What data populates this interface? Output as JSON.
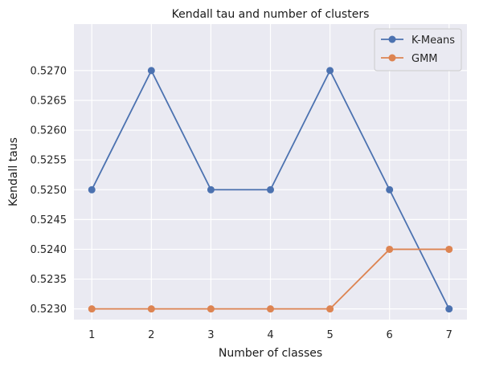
{
  "chart_data": {
    "type": "line",
    "title": "Kendall tau and number of clusters",
    "xlabel": "Number of classes",
    "ylabel": "Kendall taus",
    "x": [
      1,
      2,
      3,
      4,
      5,
      6,
      7
    ],
    "xticks": [
      "1",
      "2",
      "3",
      "4",
      "5",
      "6",
      "7"
    ],
    "xlim": [
      0.7,
      7.3
    ],
    "ylim": [
      0.52282,
      0.52778
    ],
    "yticks": [
      "0.5230",
      "0.5235",
      "0.5240",
      "0.5245",
      "0.5250",
      "0.5255",
      "0.5260",
      "0.5265",
      "0.5270"
    ],
    "grid": true,
    "legend_position": "top-right",
    "series": [
      {
        "name": "K-Means",
        "color": "#4c72b0",
        "values": [
          0.525,
          0.527,
          0.525,
          0.525,
          0.527,
          0.525,
          0.523
        ]
      },
      {
        "name": "GMM",
        "color": "#dd8452",
        "values": [
          0.523,
          0.523,
          0.523,
          0.523,
          0.523,
          0.524,
          0.524
        ]
      }
    ]
  }
}
